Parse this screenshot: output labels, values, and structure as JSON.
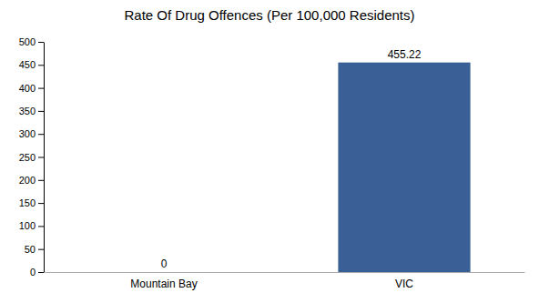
{
  "chart_data": {
    "type": "bar",
    "title": "Rate Of Drug Offences (Per 100,000 Residents)",
    "categories": [
      "Mountain Bay",
      "VIC"
    ],
    "values": [
      0,
      455.22
    ],
    "colors": [
      "#4472a8",
      "#3a5f96"
    ],
    "ylim": [
      0,
      500
    ],
    "yticks": [
      0,
      50,
      100,
      150,
      200,
      250,
      300,
      350,
      400,
      450,
      500
    ],
    "grid": false,
    "data_labels": true
  }
}
